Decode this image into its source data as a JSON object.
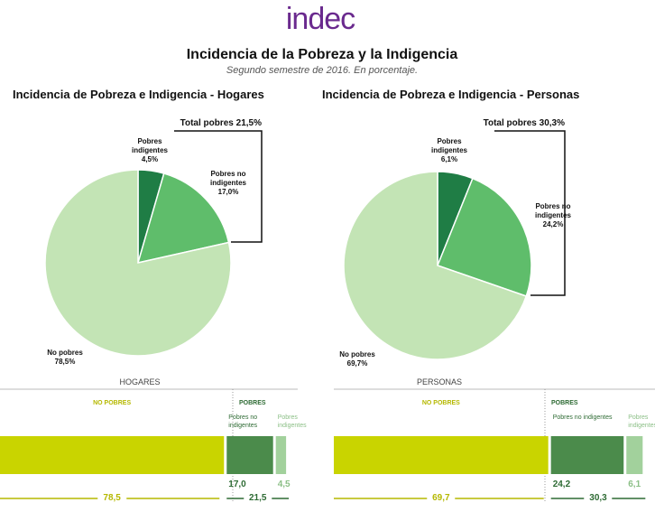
{
  "header": {
    "logo": "indec",
    "title": "Incidencia de la Pobreza y la Indigencia",
    "subtitle": "Segundo semestre de 2016. En porcentaje."
  },
  "chart_data": [
    {
      "type": "pie",
      "title": "Incidencia de Pobreza e Indigencia - Hogares",
      "annotation": "Total pobres 21,5%",
      "categories": [
        "Pobres indigentes",
        "Pobres no indigentes",
        "No pobres"
      ],
      "values": [
        4.5,
        17.0,
        78.5
      ],
      "value_labels": [
        "4,5%",
        "17,0%",
        "78,5%"
      ],
      "colors": [
        "#1f7d45",
        "#5fbd6b",
        "#c3e4b5"
      ]
    },
    {
      "type": "pie",
      "title": "Incidencia de Pobreza e Indigencia - Personas",
      "annotation": "Total pobres 30,3%",
      "categories": [
        "Pobres indigentes",
        "Pobres no indigentes",
        "No pobres"
      ],
      "values": [
        6.1,
        24.2,
        69.7
      ],
      "value_labels": [
        "6,1%",
        "24,2%",
        "69,7%"
      ],
      "colors": [
        "#1f7d45",
        "#5fbd6b",
        "#c3e4b5"
      ]
    },
    {
      "type": "stacked-bar",
      "title": "HOGARES",
      "series": [
        {
          "name": "NO POBRES",
          "color": "#c9d400",
          "values": [
            78.5
          ],
          "value_labels": [
            "78,5"
          ]
        },
        {
          "name": "Pobres no indigentes",
          "color": "#4b8b4b",
          "values": [
            17.0
          ],
          "value_labels": [
            "17,0"
          ]
        },
        {
          "name": "Pobres indigentes",
          "color": "#a2d19c",
          "values": [
            4.5
          ],
          "value_labels": [
            "4,5"
          ]
        }
      ],
      "total": {
        "label": "POBRES",
        "value": 21.5,
        "value_label": "21,5"
      }
    },
    {
      "type": "stacked-bar",
      "title": "PERSONAS",
      "series": [
        {
          "name": "NO POBRES",
          "color": "#c9d400",
          "values": [
            69.7
          ],
          "value_labels": [
            "69,7"
          ]
        },
        {
          "name": "Pobres no indigentes",
          "color": "#4b8b4b",
          "values": [
            24.2
          ],
          "value_labels": [
            "24,2"
          ]
        },
        {
          "name": "Pobres indigentes",
          "color": "#a2d19c",
          "values": [
            6.1
          ],
          "value_labels": [
            "6,1"
          ]
        }
      ],
      "total": {
        "label": "POBRES",
        "value": 30.3,
        "value_label": "30,3"
      }
    }
  ]
}
